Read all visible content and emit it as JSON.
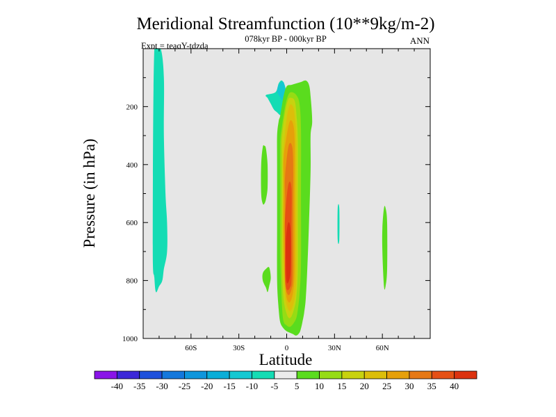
{
  "chart_data": {
    "type": "heatmap",
    "title": "Meridional Streamfunction (10**9kg/m-2)",
    "subtitle": "078kyr BP - 000kyr BP",
    "left_label": "Expt = teaqY-tdzda",
    "right_label": "ANN",
    "xlabel": "Latitude",
    "ylabel": "Pressure (in hPa)",
    "xlim": [
      -90,
      90
    ],
    "ylim": [
      1000,
      0
    ],
    "x_ticks": [
      {
        "value": -60,
        "label": "60S"
      },
      {
        "value": -30,
        "label": "30S"
      },
      {
        "value": 0,
        "label": "0"
      },
      {
        "value": 30,
        "label": "30N"
      },
      {
        "value": 60,
        "label": "60N"
      }
    ],
    "y_ticks": [
      {
        "value": 200,
        "label": "200"
      },
      {
        "value": 400,
        "label": "400"
      },
      {
        "value": 600,
        "label": "600"
      },
      {
        "value": 800,
        "label": "800"
      },
      {
        "value": 1000,
        "label": "1000"
      }
    ],
    "background_color": "#e6e6e6",
    "colorbar": {
      "levels": [
        "-40",
        "-35",
        "-30",
        "-25",
        "-20",
        "-15",
        "-10",
        "-5",
        "5",
        "10",
        "15",
        "20",
        "25",
        "30",
        "35",
        "40"
      ],
      "colors": [
        "#8a14e8",
        "#3c28d8",
        "#1e50dc",
        "#1478dc",
        "#0f96dc",
        "#0aaed8",
        "#14c8d2",
        "#14dcb4",
        "#ebebeb",
        "#5adc1e",
        "#96dc14",
        "#c8d20f",
        "#dcbe0a",
        "#e6a00a",
        "#e67814",
        "#e65014",
        "#dc320f"
      ]
    },
    "contour_regions": [
      {
        "value": -10,
        "lat": [
          -83,
          -79,
          -77,
          -77,
          -76,
          -75,
          -75,
          -77,
          -78,
          -80,
          -82,
          -83,
          -84
        ],
        "p": [
          0,
          0,
          100,
          300,
          500,
          600,
          700,
          760,
          800,
          820,
          840,
          790,
          680
        ]
      },
      {
        "value": -10,
        "lat": [
          -7,
          -5,
          -3,
          -1,
          0,
          0,
          -1,
          -2,
          -4,
          -6,
          -8,
          -10,
          -11,
          -12,
          -13
        ],
        "p": [
          150,
          120,
          110,
          130,
          170,
          200,
          220,
          230,
          230,
          220,
          210,
          190,
          180,
          170,
          160
        ]
      },
      {
        "value": -15,
        "lat": [
          -6,
          -5,
          -2,
          -1,
          -2,
          -5
        ],
        "p": [
          145,
          125,
          115,
          150,
          180,
          160
        ]
      },
      {
        "value": -10,
        "lat": [
          32,
          33,
          33,
          32
        ],
        "p": [
          550,
          550,
          660,
          660
        ]
      },
      {
        "value": 5,
        "lat": [
          -15,
          -14,
          -13,
          -12,
          -12,
          -13,
          -14,
          -15,
          -16,
          -16
        ],
        "p": [
          340,
          335,
          345,
          400,
          480,
          520,
          535,
          535,
          500,
          400
        ]
      },
      {
        "value": 5,
        "lat": [
          -13,
          -11,
          -10,
          -11,
          -12,
          -13,
          -15,
          -15
        ],
        "p": [
          760,
          755,
          790,
          820,
          840,
          825,
          800,
          775
        ]
      },
      {
        "value": 5,
        "lat": [
          61,
          62,
          63,
          63,
          62,
          61,
          60,
          60
        ],
        "p": [
          550,
          550,
          600,
          760,
          820,
          820,
          700,
          620
        ]
      },
      {
        "value": 5,
        "lat": [
          -4,
          -2,
          0,
          3,
          6,
          9,
          12,
          14,
          15,
          16,
          15,
          15,
          14,
          13,
          12,
          11,
          10,
          9,
          8,
          6,
          4,
          2,
          0,
          -2,
          -4,
          -5,
          -6,
          -6,
          -6,
          -6,
          -5
        ],
        "p": [
          230,
          165,
          130,
          125,
          120,
          115,
          110,
          125,
          165,
          250,
          300,
          420,
          600,
          750,
          860,
          910,
          940,
          965,
          980,
          990,
          985,
          980,
          975,
          965,
          945,
          900,
          800,
          600,
          400,
          300,
          250
        ]
      },
      {
        "value": 10,
        "lat": [
          -3,
          -1,
          1,
          3,
          6,
          8,
          9,
          9,
          9,
          8,
          7,
          6,
          4,
          2,
          0,
          -2,
          -3,
          -4,
          -4,
          -4
        ],
        "p": [
          270,
          200,
          160,
          150,
          160,
          190,
          280,
          500,
          740,
          850,
          900,
          930,
          950,
          960,
          955,
          940,
          880,
          720,
          500,
          330
        ]
      },
      {
        "value": 15,
        "lat": [
          -3,
          -1,
          1,
          3,
          5,
          6,
          7,
          7,
          7,
          6,
          4,
          2,
          0,
          -2,
          -3,
          -3,
          -3
        ],
        "p": [
          310,
          220,
          175,
          170,
          180,
          220,
          320,
          560,
          760,
          860,
          910,
          930,
          915,
          860,
          740,
          560,
          380
        ]
      },
      {
        "value": 20,
        "lat": [
          -2,
          0,
          2,
          4,
          5,
          6,
          6,
          6,
          5,
          3,
          1,
          -1,
          -2,
          -2,
          -2
        ],
        "p": [
          350,
          240,
          195,
          200,
          230,
          320,
          560,
          780,
          860,
          900,
          900,
          850,
          720,
          560,
          400
        ]
      },
      {
        "value": 25,
        "lat": [
          -2,
          0,
          2,
          4,
          5,
          5,
          5,
          4,
          2,
          0,
          -1,
          -2,
          -2
        ],
        "p": [
          380,
          300,
          250,
          260,
          320,
          520,
          760,
          840,
          875,
          860,
          800,
          660,
          460
        ]
      },
      {
        "value": 30,
        "lat": [
          -1,
          1,
          3,
          4,
          4,
          4,
          3,
          1,
          -1,
          -1,
          -1
        ],
        "p": [
          440,
          340,
          330,
          380,
          560,
          780,
          830,
          850,
          810,
          680,
          520
        ]
      },
      {
        "value": 35,
        "lat": [
          -1,
          1,
          3,
          3,
          3,
          2,
          0,
          -1,
          -1
        ],
        "p": [
          580,
          470,
          480,
          620,
          790,
          825,
          830,
          780,
          680
        ]
      },
      {
        "value": 40,
        "lat": [
          -0.5,
          1,
          2.5,
          2.5,
          1.5,
          0,
          -0.5
        ],
        "p": [
          660,
          600,
          630,
          760,
          800,
          805,
          740
        ]
      }
    ]
  }
}
